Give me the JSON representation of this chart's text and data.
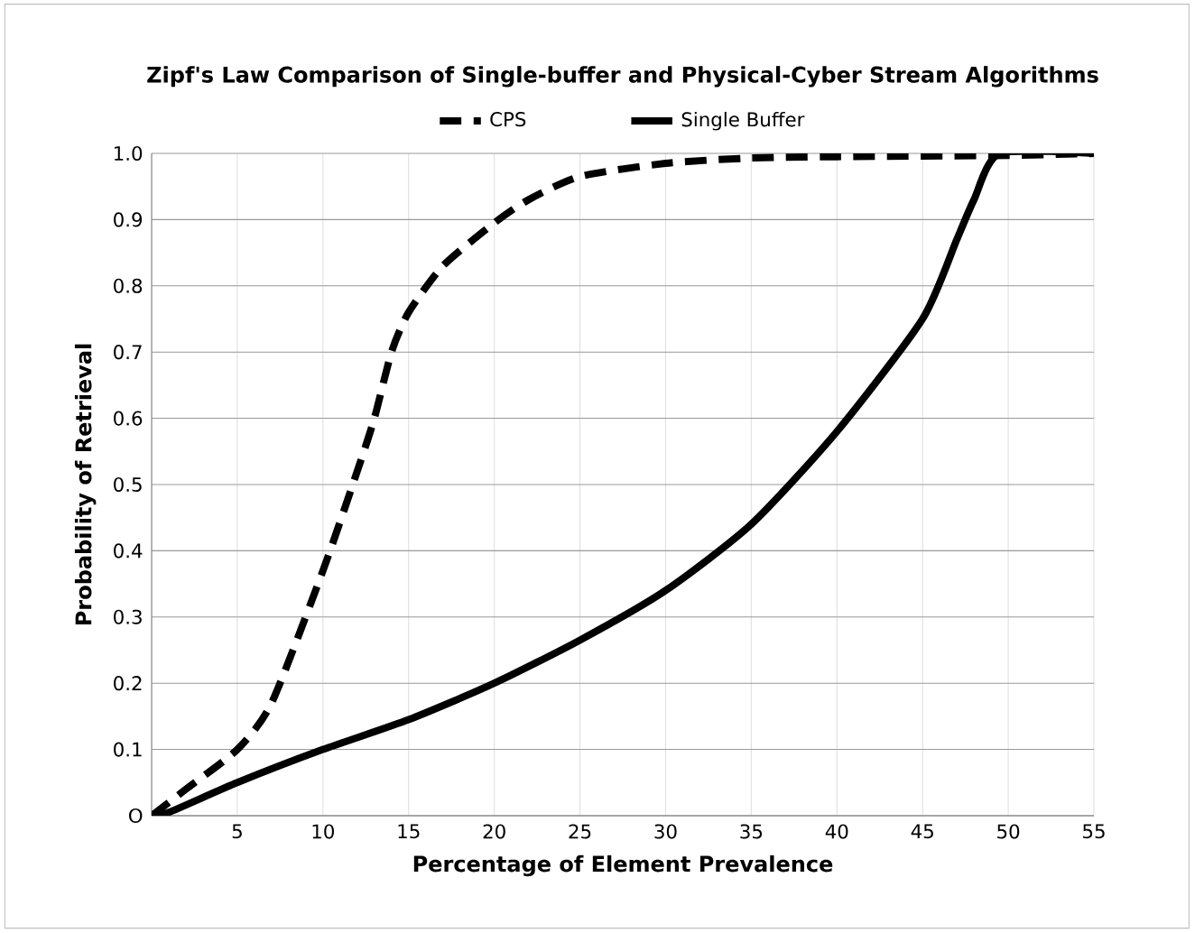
{
  "chart_data": {
    "type": "line",
    "title": "Zipf's Law Comparison of Single-buffer and Physical-Cyber Stream Algorithms",
    "xlabel": "Percentage of Element Prevalence",
    "ylabel": "Probability of Retrieval",
    "xlim": [
      0,
      55
    ],
    "ylim": [
      0,
      1.0
    ],
    "xticks": [
      {
        "value": 0,
        "label": null
      },
      5,
      10,
      15,
      20,
      25,
      30,
      35,
      40,
      45,
      50,
      55
    ],
    "yticks": [
      {
        "value": 0,
        "label": "O"
      },
      {
        "value": 0.1,
        "label": "0.1"
      },
      {
        "value": 0.2,
        "label": "0.2"
      },
      {
        "value": 0.3,
        "label": "0.3"
      },
      {
        "value": 0.4,
        "label": "0.4"
      },
      {
        "value": 0.5,
        "label": "0.5"
      },
      {
        "value": 0.6,
        "label": "0.6"
      },
      {
        "value": 0.7,
        "label": "0.7"
      },
      {
        "value": 0.8,
        "label": "0.8"
      },
      {
        "value": 0.9,
        "label": "0.9"
      },
      {
        "value": 1.0,
        "label": "1.0"
      }
    ],
    "grid": true,
    "legend": "top",
    "marker": "none",
    "series": [
      {
        "name": "CPS",
        "color": "#000000",
        "line_style": "dashed",
        "x": [
          0,
          2,
          5,
          7,
          10,
          12,
          13,
          14,
          15,
          17,
          20,
          22,
          25,
          30,
          35,
          40,
          50,
          55
        ],
        "values": [
          0,
          0.04,
          0.1,
          0.17,
          0.37,
          0.52,
          0.6,
          0.7,
          0.76,
          0.83,
          0.895,
          0.93,
          0.965,
          0.985,
          0.993,
          0.995,
          0.997,
          1.0
        ]
      },
      {
        "name": "Single Buffer",
        "color": "#000000",
        "line_style": "solid",
        "x": [
          0,
          1,
          5,
          10,
          15,
          20,
          25,
          30,
          35,
          40,
          45,
          47,
          48,
          49.5,
          55
        ],
        "values": [
          0,
          0.005,
          0.05,
          0.1,
          0.145,
          0.2,
          0.265,
          0.34,
          0.44,
          0.58,
          0.75,
          0.87,
          0.93,
          1.0,
          1.0
        ]
      }
    ]
  }
}
